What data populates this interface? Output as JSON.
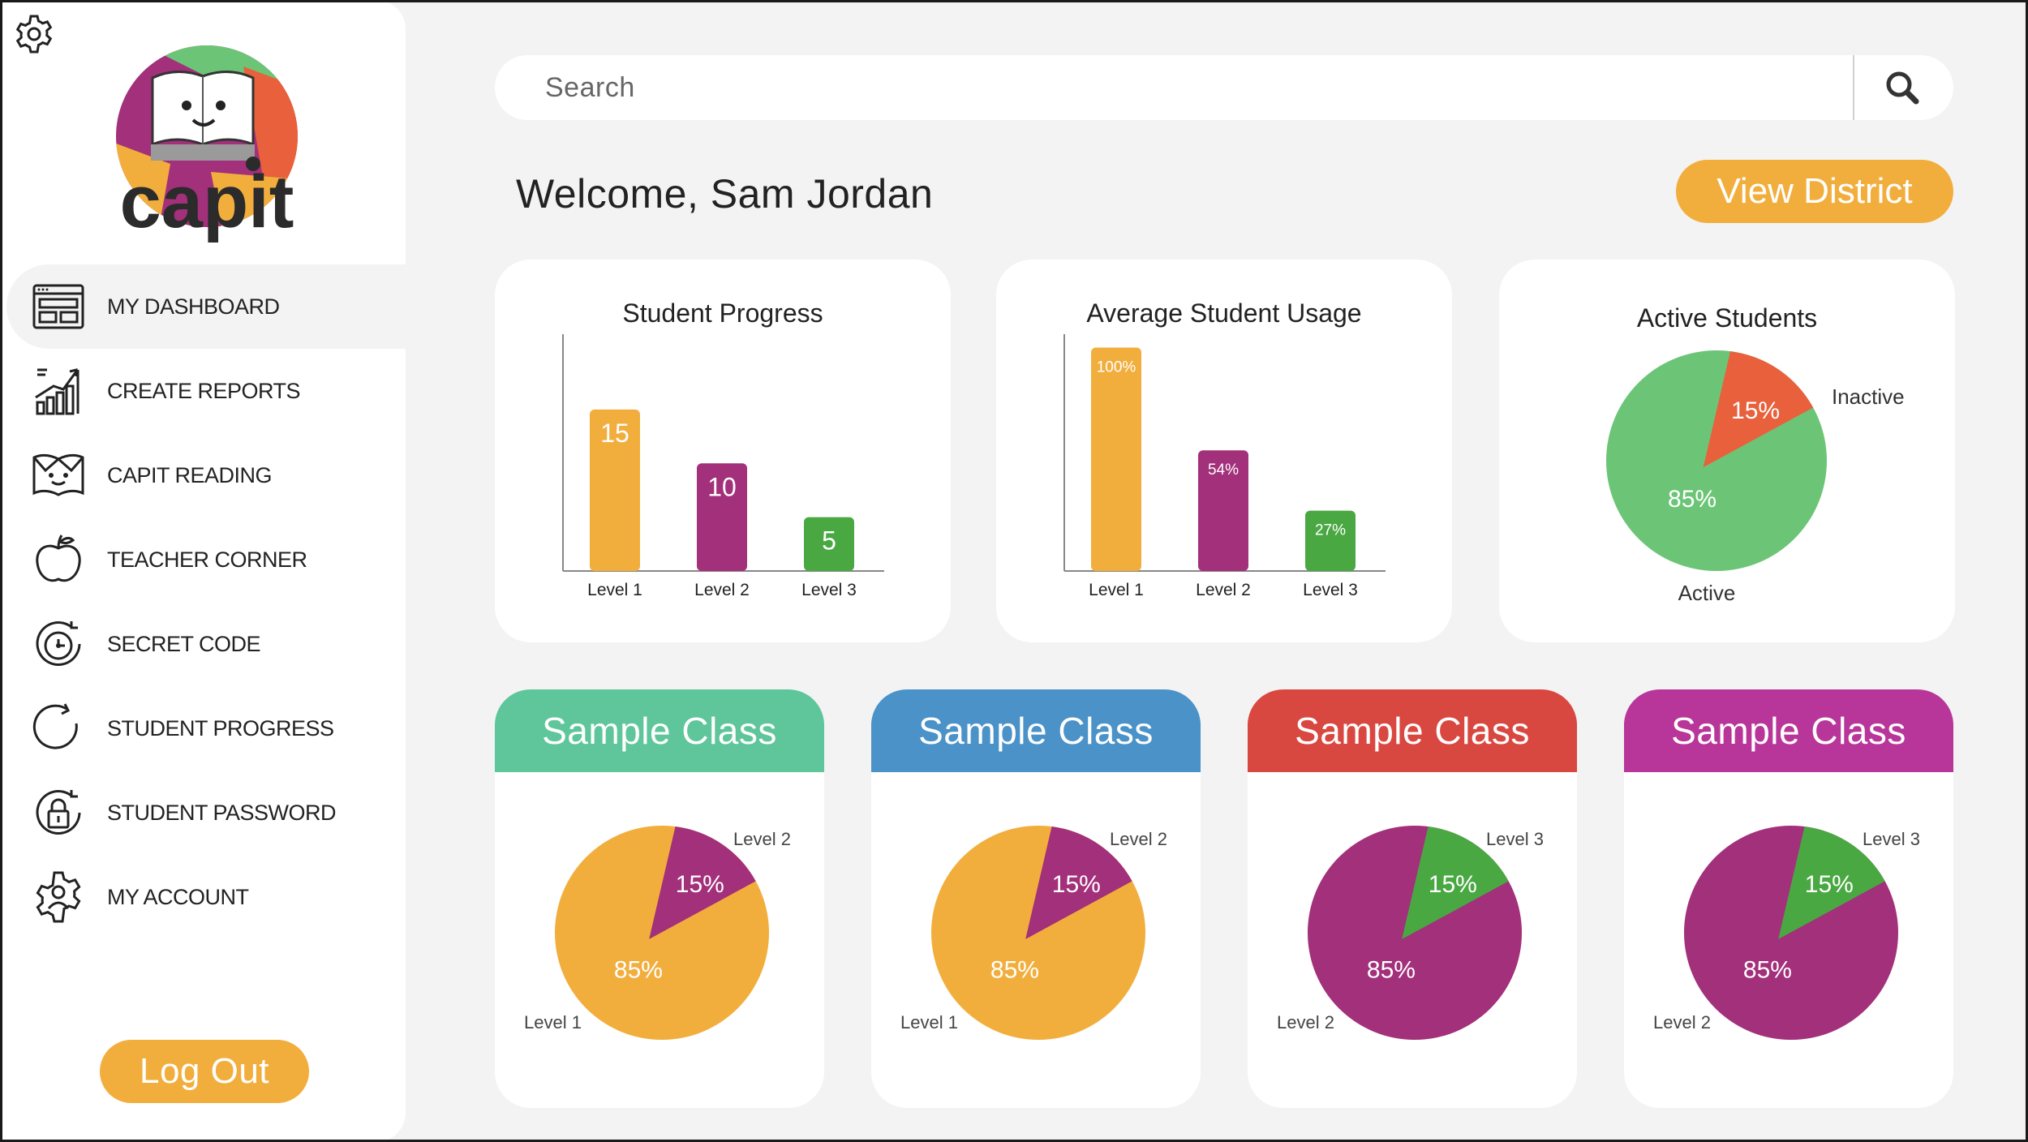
{
  "sidebar": {
    "items": [
      {
        "label": "MY DASHBOARD",
        "icon": "dashboard-icon",
        "active": true
      },
      {
        "label": "CREATE REPORTS",
        "icon": "reports-chart-icon"
      },
      {
        "label": "CAPIT READING",
        "icon": "book-face-icon"
      },
      {
        "label": "TEACHER CORNER",
        "icon": "apple-icon"
      },
      {
        "label": "SECRET CODE",
        "icon": "code-dial-icon"
      },
      {
        "label": "STUDENT PROGRESS",
        "icon": "refresh-circle-icon"
      },
      {
        "label": "STUDENT PASSWORD",
        "icon": "lock-refresh-icon"
      },
      {
        "label": "MY ACCOUNT",
        "icon": "account-gear-icon"
      }
    ],
    "logout_label": "Log Out",
    "logo_text": "capit"
  },
  "search": {
    "placeholder": "Search"
  },
  "header": {
    "welcome": "Welcome, Sam Jordan",
    "district_label": "View District"
  },
  "colors": {
    "orange": "#f2ae3d",
    "purple": "#a2307a",
    "green": "#4aa843",
    "light_green": "#6cc577",
    "red": "#e8603c",
    "teal": "#5ec69a",
    "blue": "#4a92c8",
    "class_red": "#d94840",
    "magenta": "#b8369a"
  },
  "chart_data": [
    {
      "type": "bar",
      "title": "Student Progress",
      "categories": [
        "Level 1",
        "Level 2",
        "Level 3"
      ],
      "values": [
        15,
        10,
        5
      ],
      "labels": [
        "15",
        "10",
        "5"
      ],
      "colors": [
        "#f2ae3d",
        "#a2307a",
        "#4aa843"
      ],
      "ylim": [
        0,
        22
      ]
    },
    {
      "type": "bar",
      "title": "Average Student Usage",
      "categories": [
        "Level 1",
        "Level 2",
        "Level 3"
      ],
      "values": [
        100,
        54,
        27
      ],
      "labels": [
        "100%",
        "54%",
        "27%"
      ],
      "colors": [
        "#f2ae3d",
        "#a2307a",
        "#4aa843"
      ],
      "ylim": [
        0,
        106
      ]
    },
    {
      "type": "pie",
      "title": "Active Students",
      "slices": [
        {
          "label": "Active",
          "value": 85,
          "display": "85%",
          "color": "#6cc577"
        },
        {
          "label": "Inactive",
          "value": 15,
          "display": "15%",
          "color": "#e8603c"
        }
      ]
    },
    {
      "type": "pie",
      "title": "Sample Class",
      "header_color": "#5ec69a",
      "slices": [
        {
          "label": "Level 1",
          "value": 85,
          "display": "85%",
          "color": "#f2ae3d"
        },
        {
          "label": "Level 2",
          "value": 15,
          "display": "15%",
          "color": "#a2307a"
        }
      ]
    },
    {
      "type": "pie",
      "title": "Sample Class",
      "header_color": "#4a92c8",
      "slices": [
        {
          "label": "Level 1",
          "value": 85,
          "display": "85%",
          "color": "#f2ae3d"
        },
        {
          "label": "Level 2",
          "value": 15,
          "display": "15%",
          "color": "#a2307a"
        }
      ]
    },
    {
      "type": "pie",
      "title": "Sample Class",
      "header_color": "#d94840",
      "slices": [
        {
          "label": "Level 2",
          "value": 85,
          "display": "85%",
          "color": "#a2307a"
        },
        {
          "label": "Level 3",
          "value": 15,
          "display": "15%",
          "color": "#4aa843"
        }
      ]
    },
    {
      "type": "pie",
      "title": "Sample Class",
      "header_color": "#b8369a",
      "slices": [
        {
          "label": "Level 2",
          "value": 85,
          "display": "85%",
          "color": "#a2307a"
        },
        {
          "label": "Level 3",
          "value": 15,
          "display": "15%",
          "color": "#4aa843"
        }
      ]
    }
  ]
}
